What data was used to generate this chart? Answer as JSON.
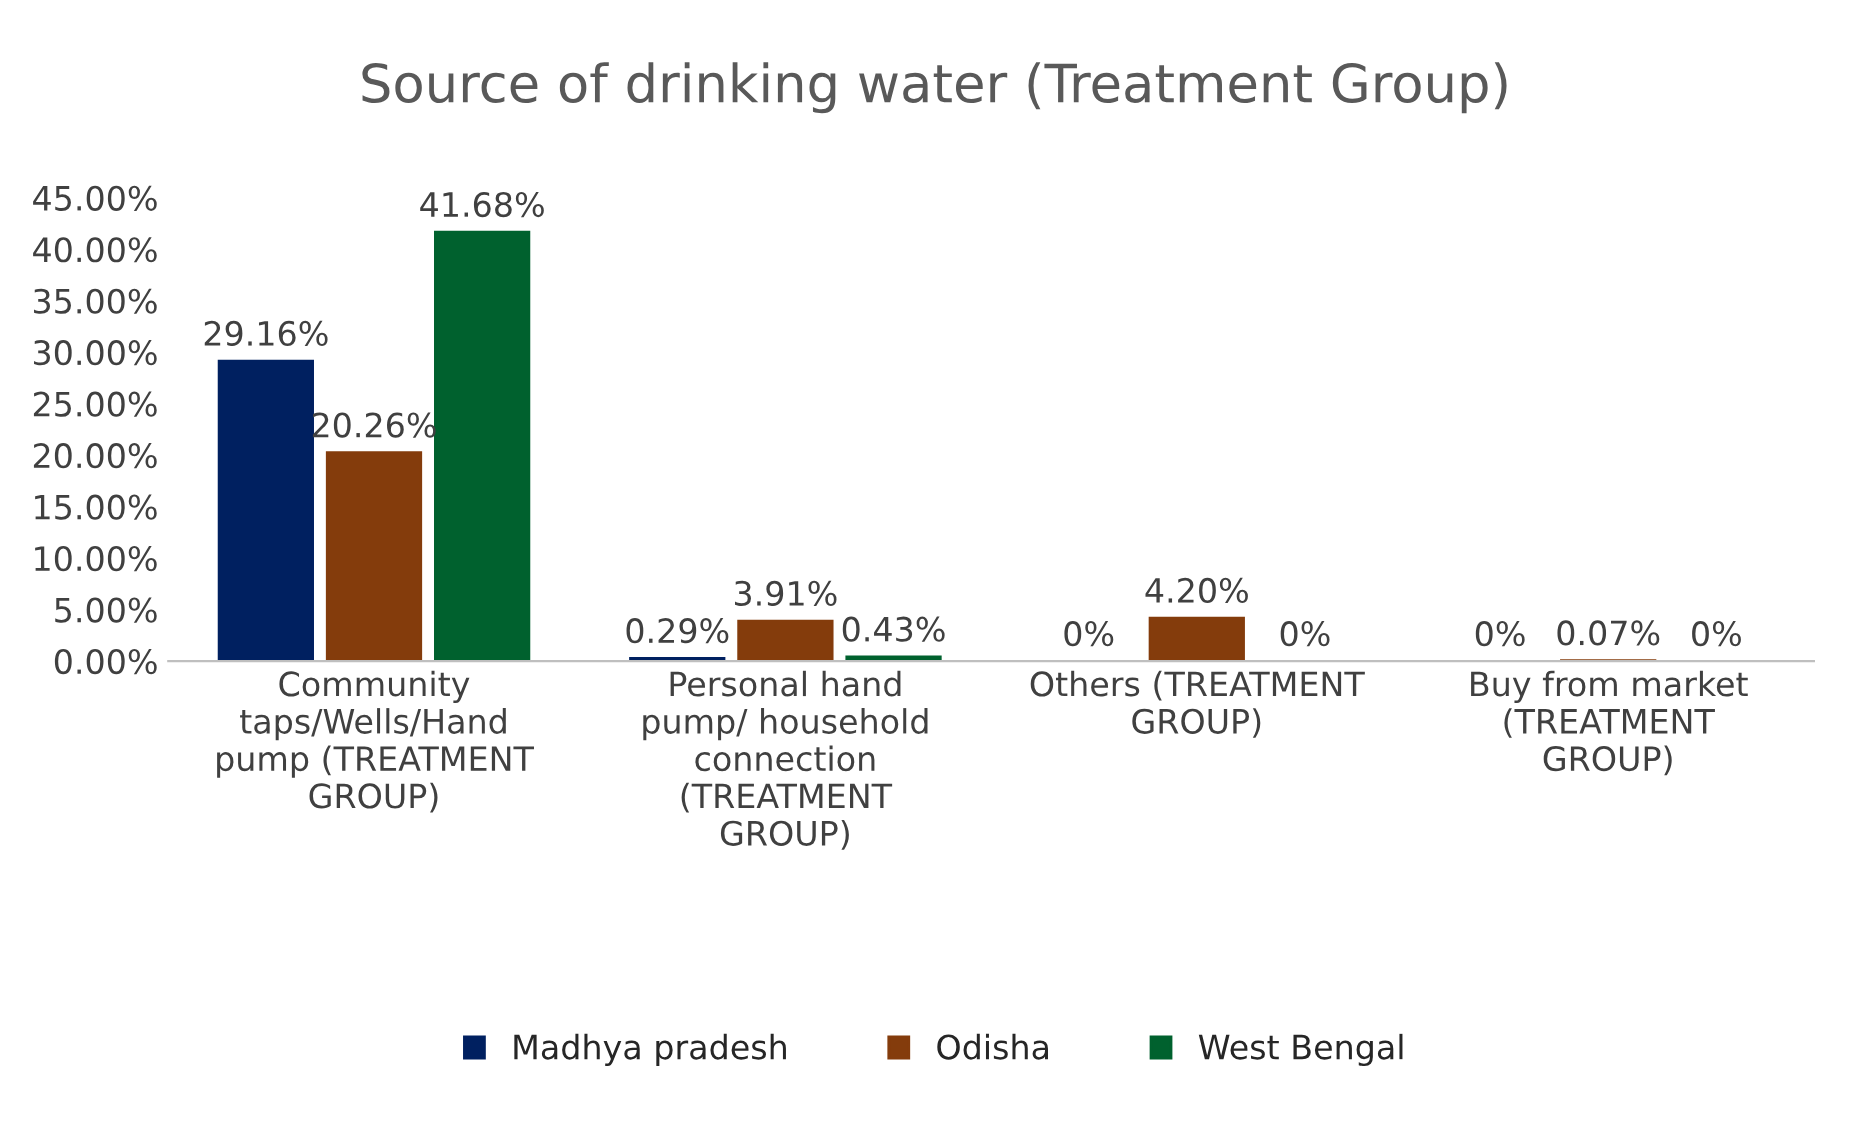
{
  "chart_data": {
    "type": "bar",
    "title": "Source of drinking water (Treatment Group)",
    "categories": [
      "Community\ntaps/Wells/Hand\npump (TREATMENT\nGROUP)",
      "Personal hand\npump/ household\nconnection\n(TREATMENT\nGROUP)",
      "Others (TREATMENT\nGROUP)",
      "Buy from market\n(TREATMENT\nGROUP)"
    ],
    "series": [
      {
        "name": "Madhya pradesh",
        "color": "#002060",
        "values": [
          29.16,
          0.29,
          0,
          0
        ],
        "value_labels": [
          "29.16%",
          "0.29%",
          "0%",
          "0%"
        ]
      },
      {
        "name": "Odisha",
        "color": "#843c0c",
        "values": [
          20.26,
          3.91,
          4.2,
          0.07
        ],
        "value_labels": [
          "20.26%",
          "3.91%",
          "4.20%",
          "0.07%"
        ]
      },
      {
        "name": "West Bengal",
        "color": "#00612e",
        "values": [
          41.68,
          0.43,
          0,
          0
        ],
        "value_labels": [
          "41.68%",
          "0.43%",
          "0%",
          "0%"
        ]
      }
    ],
    "ylim": [
      0,
      45
    ],
    "yticks": [
      {
        "value": 0,
        "label": "0.00%"
      },
      {
        "value": 5,
        "label": "5.00%"
      },
      {
        "value": 10,
        "label": "10.00%"
      },
      {
        "value": 15,
        "label": "15.00%"
      },
      {
        "value": 20,
        "label": "20.00%"
      },
      {
        "value": 25,
        "label": "25.00%"
      },
      {
        "value": 30,
        "label": "30.00%"
      },
      {
        "value": 35,
        "label": "35.00%"
      },
      {
        "value": 40,
        "label": "40.00%"
      },
      {
        "value": 45,
        "label": "45.00%"
      }
    ],
    "grid": false,
    "legend": "bottom"
  }
}
